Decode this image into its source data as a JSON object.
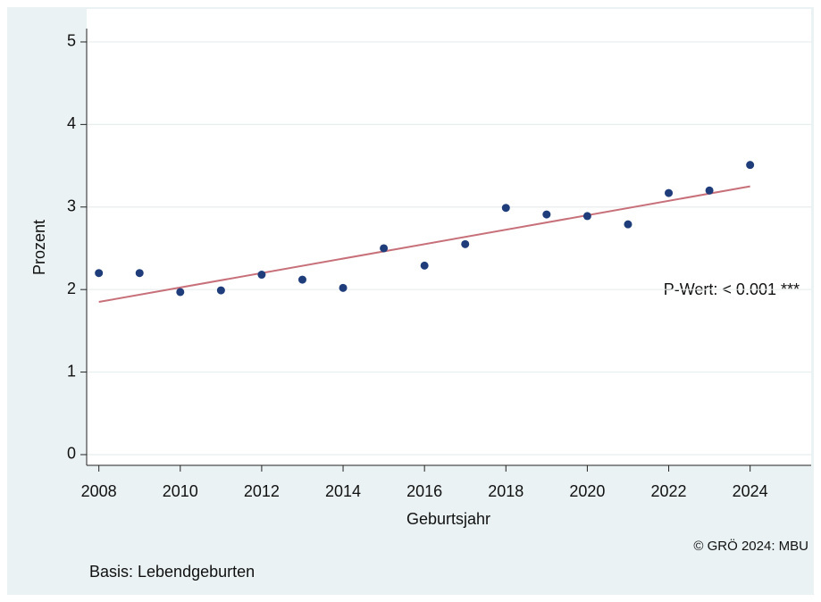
{
  "chart_data": {
    "type": "scatter",
    "x_label": "Geburtsjahr",
    "y_label": "Prozent",
    "annotation": "P-Wert: < 0.001 ***",
    "caption": "© GRÖ 2024: MBU",
    "note": "Basis: Lebendgeburten",
    "x": [
      2008,
      2009,
      2010,
      2011,
      2012,
      2013,
      2014,
      2015,
      2016,
      2017,
      2018,
      2019,
      2020,
      2021,
      2022,
      2023,
      2024
    ],
    "values": [
      2.2,
      2.2,
      1.97,
      1.99,
      2.18,
      2.12,
      2.02,
      2.5,
      2.29,
      2.55,
      2.99,
      2.91,
      2.89,
      2.79,
      3.17,
      3.2,
      3.51
    ],
    "color": "#1f3d7a",
    "fit": {
      "x": [
        2008,
        2024
      ],
      "values": [
        1.85,
        3.25
      ],
      "color": "#c8707a"
    },
    "xlim": [
      2007.7,
      2025.5
    ],
    "xticks": [
      2008,
      2010,
      2012,
      2014,
      2016,
      2018,
      2020,
      2022,
      2024
    ],
    "ylim": [
      -0.13,
      5.4
    ],
    "yticks": [
      0,
      1,
      2,
      3,
      4,
      5
    ],
    "grid": true
  }
}
